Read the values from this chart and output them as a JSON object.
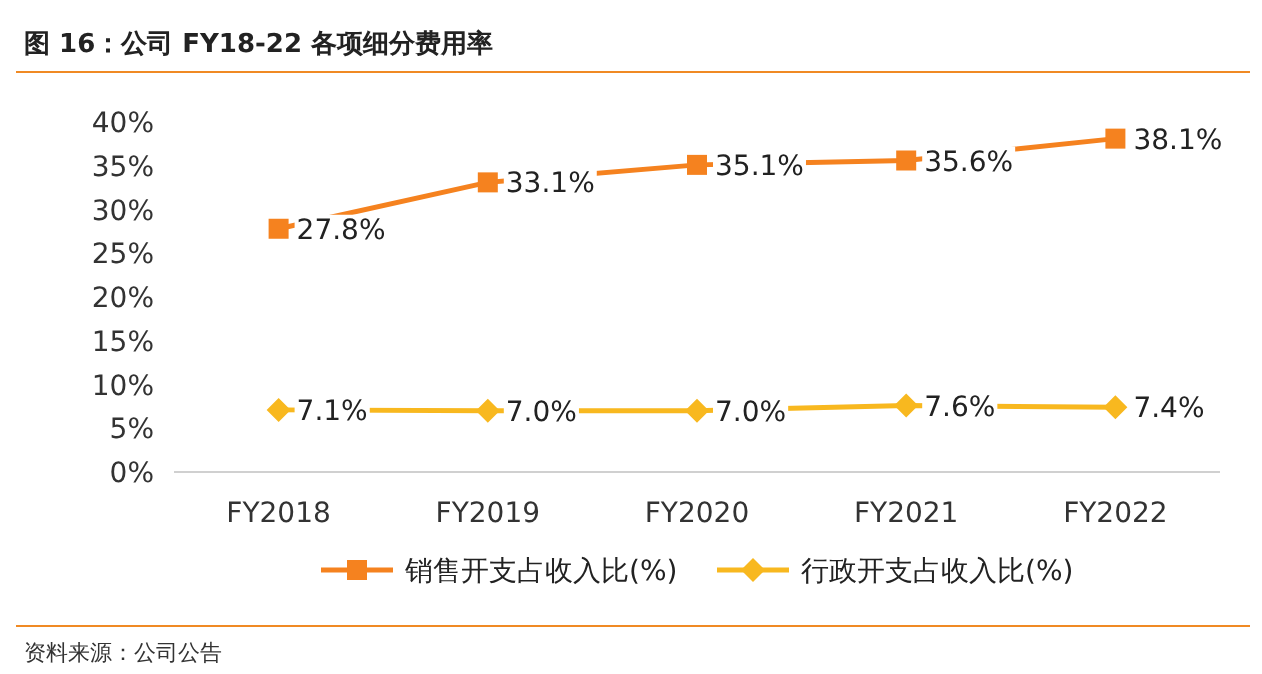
{
  "chart_data": {
    "type": "line",
    "title": "图 16：公司 FY18-22 各项细分费用率",
    "categories": [
      "FY2018",
      "FY2019",
      "FY2020",
      "FY2021",
      "FY2022"
    ],
    "series": [
      {
        "name": "销售开支占收入比(%)",
        "color": "#f5821f",
        "marker": "square",
        "values": [
          27.8,
          33.1,
          35.1,
          35.6,
          38.1
        ],
        "value_labels": [
          "27.8%",
          "33.1%",
          "35.1%",
          "35.6%",
          "38.1%"
        ]
      },
      {
        "name": "行政开支占收入比(%)",
        "color": "#f8b81f",
        "marker": "diamond",
        "values": [
          7.1,
          7.0,
          7.0,
          7.6,
          7.4
        ],
        "value_labels": [
          "7.1%",
          "7.0%",
          "7.0%",
          "7.6%",
          "7.4%"
        ]
      }
    ],
    "ylim": [
      0,
      40
    ],
    "yticks": [
      {
        "value": 0,
        "label": "0%"
      },
      {
        "value": 5,
        "label": "5%"
      },
      {
        "value": 10,
        "label": "10%"
      },
      {
        "value": 15,
        "label": "15%"
      },
      {
        "value": 20,
        "label": "20%"
      },
      {
        "value": 25,
        "label": "25%"
      },
      {
        "value": 30,
        "label": "30%"
      },
      {
        "value": 35,
        "label": "35%"
      },
      {
        "value": 40,
        "label": "40%"
      }
    ],
    "legend": "bottom",
    "grid": false,
    "line_style": "solid",
    "annotations": [
      "资料来源：公司公告"
    ]
  }
}
